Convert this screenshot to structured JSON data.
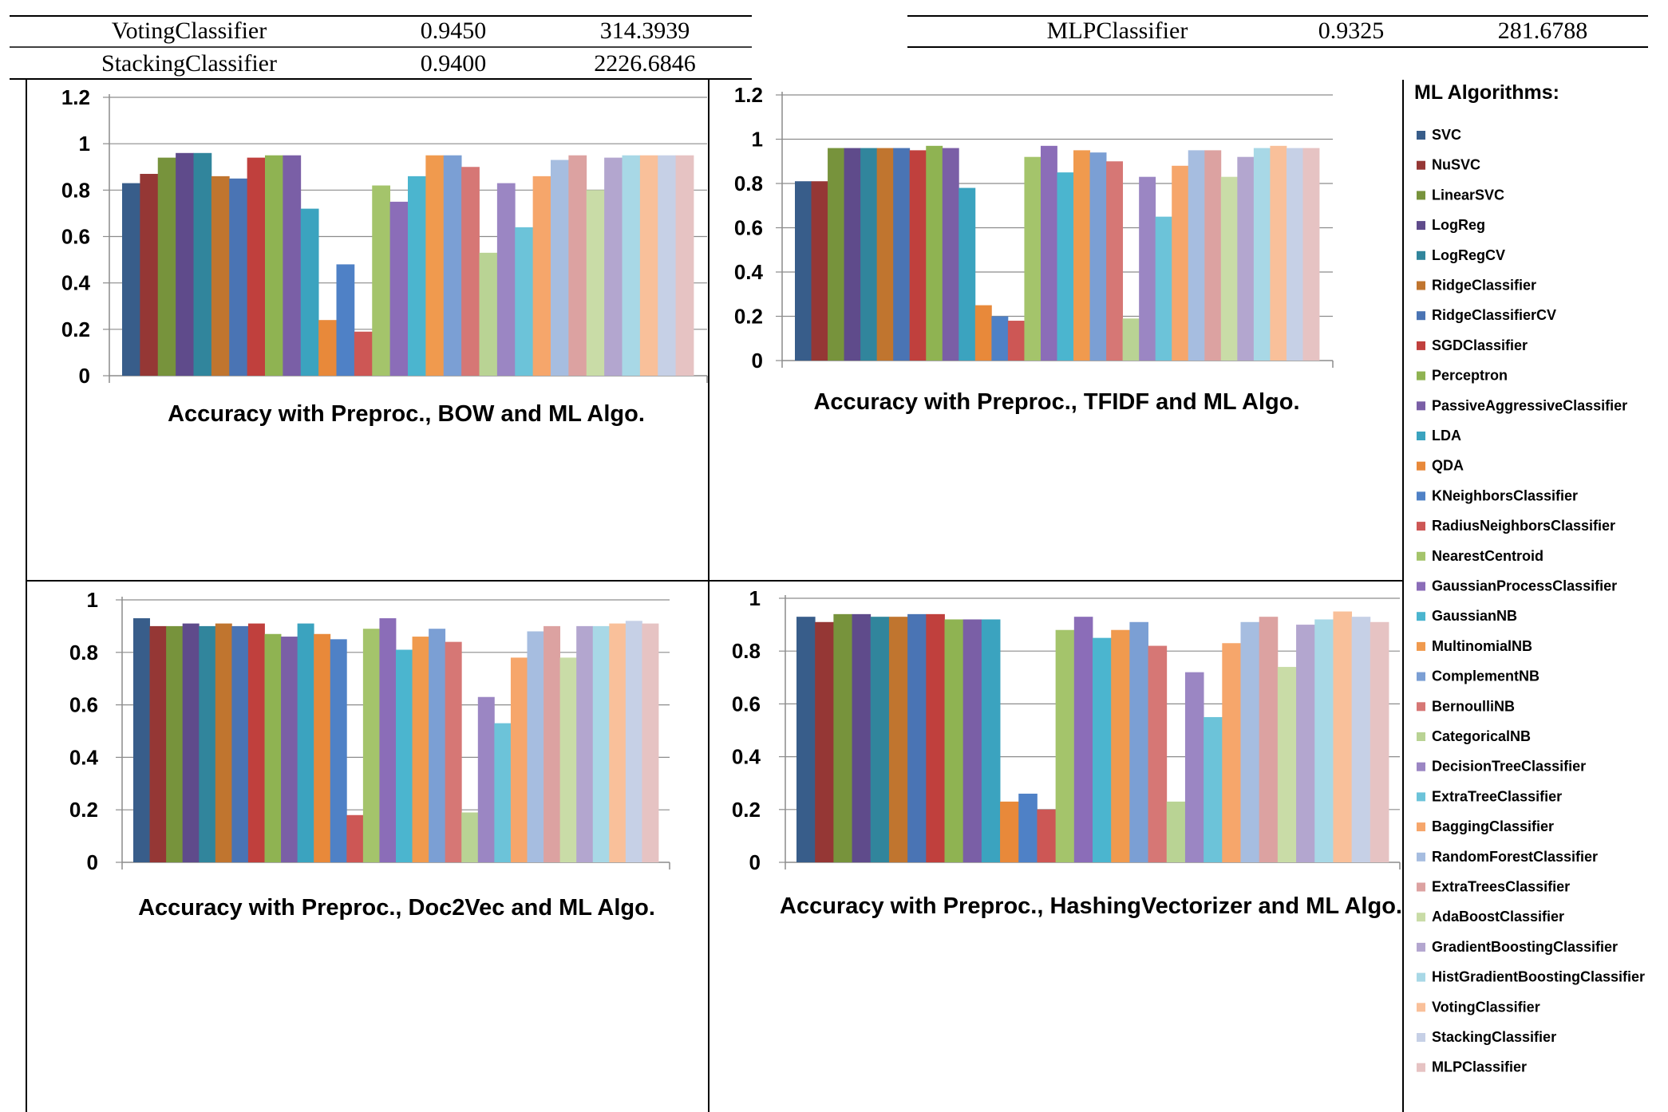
{
  "top_table": {
    "left_rows": [
      {
        "name": "VotingClassifier",
        "accuracy": "0.9450",
        "time": "314.3939"
      },
      {
        "name": "StackingClassifier",
        "accuracy": "0.9400",
        "time": "2226.6846"
      }
    ],
    "right_rows": [
      {
        "name": "MLPClassifier",
        "accuracy": "0.9325",
        "time": "281.6788"
      }
    ]
  },
  "legend": {
    "title": "ML Algorithms:",
    "items": [
      {
        "name": "SVC",
        "color": "#385d8a"
      },
      {
        "name": "NuSVC",
        "color": "#953735"
      },
      {
        "name": "LinearSVC",
        "color": "#77933c"
      },
      {
        "name": "LogReg",
        "color": "#5f4b8b"
      },
      {
        "name": "LogRegCV",
        "color": "#31859c"
      },
      {
        "name": "RidgeClassifier",
        "color": "#c0752f"
      },
      {
        "name": "RidgeClassifierCV",
        "color": "#4a74b4"
      },
      {
        "name": "SGDClassifier",
        "color": "#c0403d"
      },
      {
        "name": "Perceptron",
        "color": "#8fb352"
      },
      {
        "name": "PassiveAggressiveClassifier",
        "color": "#7a5fa6"
      },
      {
        "name": "LDA",
        "color": "#3ba3bf"
      },
      {
        "name": "QDA",
        "color": "#e8893a"
      },
      {
        "name": "KNeighborsClassifier",
        "color": "#4f81c6"
      },
      {
        "name": "RadiusNeighborsClassifier",
        "color": "#cd5755"
      },
      {
        "name": "NearestCentroid",
        "color": "#a4c46b"
      },
      {
        "name": "GaussianProcessClassifier",
        "color": "#8b6db8"
      },
      {
        "name": "GaussianNB",
        "color": "#4bb5cf"
      },
      {
        "name": "MultinomialNB",
        "color": "#f09a4e"
      },
      {
        "name": "ComplementNB",
        "color": "#7b9fd4"
      },
      {
        "name": "BernoulliNB",
        "color": "#d67775"
      },
      {
        "name": "CategoricalNB",
        "color": "#b9d394"
      },
      {
        "name": "DecisionTreeClassifier",
        "color": "#9b86c3"
      },
      {
        "name": "ExtraTreeClassifier",
        "color": "#6cc3d9"
      },
      {
        "name": "BaggingClassifier",
        "color": "#f6a66b"
      },
      {
        "name": "RandomForestClassifier",
        "color": "#a6bde0"
      },
      {
        "name": "ExtraTreesClassifier",
        "color": "#dca2a1"
      },
      {
        "name": "AdaBoostClassifier",
        "color": "#c9dca7"
      },
      {
        "name": "GradientBoostingClassifier",
        "color": "#b3a6cf"
      },
      {
        "name": "HistGradientBoostingClassifier",
        "color": "#a8d8e6"
      },
      {
        "name": "VotingClassifier",
        "color": "#f9c09a"
      },
      {
        "name": "StackingClassifier",
        "color": "#c6d0e6"
      },
      {
        "name": "MLPClassifier",
        "color": "#e6c3c3"
      }
    ]
  },
  "chart_data": [
    {
      "type": "bar",
      "title": "Accuracy with Preproc., BOW and ML Algo.",
      "ylim": [
        0,
        1.2
      ],
      "yticks": [
        "0",
        "0.2",
        "0.4",
        "0.6",
        "0.8",
        "1",
        "1.2"
      ],
      "grid": true,
      "values": [
        0.83,
        0.87,
        0.94,
        0.96,
        0.96,
        0.86,
        0.85,
        0.94,
        0.95,
        0.95,
        0.72,
        0.24,
        0.48,
        0.19,
        0.82,
        0.75,
        0.86,
        0.95,
        0.95,
        0.9,
        0.53,
        0.83,
        0.64,
        0.86,
        0.93,
        0.95,
        0.8,
        0.94,
        0.95,
        0.95,
        0.95,
        0.95
      ]
    },
    {
      "type": "bar",
      "title": "Accuracy with Preproc., TFIDF and ML Algo.",
      "ylim": [
        0,
        1.2
      ],
      "yticks": [
        "0",
        "0.2",
        "0.4",
        "0.6",
        "0.8",
        "1",
        "1.2"
      ],
      "grid": true,
      "values": [
        0.81,
        0.81,
        0.96,
        0.96,
        0.96,
        0.96,
        0.96,
        0.95,
        0.97,
        0.96,
        0.78,
        0.25,
        0.2,
        0.18,
        0.92,
        0.97,
        0.85,
        0.95,
        0.94,
        0.9,
        0.19,
        0.83,
        0.65,
        0.88,
        0.95,
        0.95,
        0.83,
        0.92,
        0.96,
        0.97,
        0.96,
        0.96
      ]
    },
    {
      "type": "bar",
      "title": "Accuracy with Preproc., Doc2Vec and ML Algo.",
      "ylim": [
        0,
        1
      ],
      "yticks": [
        "0",
        "0.2",
        "0.4",
        "0.6",
        "0.8",
        "1"
      ],
      "grid": true,
      "values": [
        0.93,
        0.9,
        0.9,
        0.91,
        0.9,
        0.91,
        0.9,
        0.91,
        0.87,
        0.86,
        0.91,
        0.87,
        0.85,
        0.18,
        0.89,
        0.93,
        0.81,
        0.86,
        0.89,
        0.84,
        0.19,
        0.63,
        0.53,
        0.78,
        0.88,
        0.9,
        0.78,
        0.9,
        0.9,
        0.91,
        0.92,
        0.91
      ]
    },
    {
      "type": "bar",
      "title": "Accuracy with Preproc., HashingVectorizer and ML Algo.",
      "ylim": [
        0,
        1
      ],
      "yticks": [
        "0",
        "0.2",
        "0.4",
        "0.6",
        "0.8",
        "1"
      ],
      "grid": true,
      "values": [
        0.93,
        0.91,
        0.94,
        0.94,
        0.93,
        0.93,
        0.94,
        0.94,
        0.92,
        0.92,
        0.92,
        0.23,
        0.26,
        0.2,
        0.88,
        0.93,
        0.85,
        0.88,
        0.91,
        0.82,
        0.23,
        0.72,
        0.55,
        0.83,
        0.91,
        0.93,
        0.74,
        0.9,
        0.92,
        0.95,
        0.93,
        0.91
      ]
    }
  ]
}
